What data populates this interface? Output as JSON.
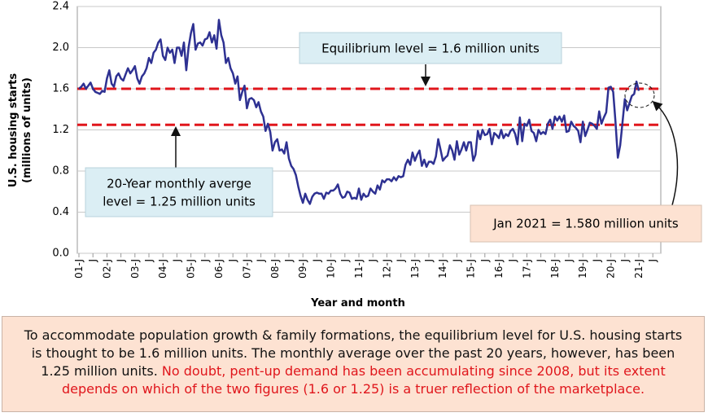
{
  "chart_data": {
    "type": "line",
    "y_label": [
      "U.S. housing starts",
      "(millions of units)"
    ],
    "x_label": "Year and month",
    "ylim": [
      0,
      2.4
    ],
    "yticks": [
      {
        "value": 0,
        "label": "0.0"
      },
      0.4,
      0.8,
      1.2,
      1.6,
      {
        "value": 2,
        "label": "2.0"
      },
      2.4
    ],
    "grid": true,
    "categories": [
      "01-J",
      null,
      null,
      null,
      null,
      null,
      "J",
      null,
      null,
      null,
      null,
      null,
      "02-J",
      null,
      null,
      null,
      null,
      null,
      "J",
      null,
      null,
      null,
      null,
      null,
      "03-J",
      null,
      null,
      null,
      null,
      null,
      "J",
      null,
      null,
      null,
      null,
      null,
      "04-J",
      null,
      null,
      null,
      null,
      null,
      "J",
      null,
      null,
      null,
      null,
      null,
      "05-J",
      null,
      null,
      null,
      null,
      null,
      "J",
      null,
      null,
      null,
      null,
      null,
      "06-J",
      null,
      null,
      null,
      null,
      null,
      "J",
      null,
      null,
      null,
      null,
      null,
      "07-J",
      null,
      null,
      null,
      null,
      null,
      "J",
      null,
      null,
      null,
      null,
      null,
      "08-J",
      null,
      null,
      null,
      null,
      null,
      "J",
      null,
      null,
      null,
      null,
      null,
      "09-J",
      null,
      null,
      null,
      null,
      null,
      "J",
      null,
      null,
      null,
      null,
      null,
      "10-J",
      null,
      null,
      null,
      null,
      null,
      "J",
      null,
      null,
      null,
      null,
      null,
      "11-J",
      null,
      null,
      null,
      null,
      null,
      "J",
      null,
      null,
      null,
      null,
      null,
      "12-J",
      null,
      null,
      null,
      null,
      null,
      "J",
      null,
      null,
      null,
      null,
      null,
      "13-J",
      null,
      null,
      null,
      null,
      null,
      "J",
      null,
      null,
      null,
      null,
      null,
      "14-J",
      null,
      null,
      null,
      null,
      null,
      "J",
      null,
      null,
      null,
      null,
      null,
      "15-J",
      null,
      null,
      null,
      null,
      null,
      "J",
      null,
      null,
      null,
      null,
      null,
      "16-J",
      null,
      null,
      null,
      null,
      null,
      "J",
      null,
      null,
      null,
      null,
      null,
      "17-J",
      null,
      null,
      null,
      null,
      null,
      "J",
      null,
      null,
      null,
      null,
      null,
      "18-J",
      null,
      null,
      null,
      null,
      null,
      "J",
      null,
      null,
      null,
      null,
      null,
      "19-J",
      null,
      null,
      null,
      null,
      null,
      "J",
      null,
      null,
      null,
      null,
      null,
      "20-J",
      null,
      null,
      null,
      null,
      null,
      "J",
      null,
      null,
      null,
      null,
      null,
      "21-J",
      null,
      null,
      null,
      null,
      null,
      "J"
    ],
    "series": [
      {
        "color": "#2e3192",
        "values": [
          1.6,
          1.62,
          1.65,
          1.6,
          1.63,
          1.66,
          1.6,
          1.57,
          1.56,
          1.55,
          1.58,
          1.57,
          1.7,
          1.78,
          1.65,
          1.62,
          1.72,
          1.75,
          1.7,
          1.68,
          1.74,
          1.8,
          1.75,
          1.78,
          1.82,
          1.7,
          1.65,
          1.72,
          1.75,
          1.8,
          1.9,
          1.85,
          1.95,
          1.98,
          2.05,
          2.08,
          1.92,
          1.88,
          2.0,
          1.95,
          1.98,
          1.85,
          2.0,
          2.0,
          1.92,
          2.05,
          1.78,
          2.0,
          2.14,
          2.23,
          1.98,
          2.04,
          2.05,
          2.02,
          2.08,
          2.09,
          2.15,
          2.05,
          2.12,
          1.99,
          2.27,
          2.12,
          2.05,
          1.85,
          1.9,
          1.8,
          1.75,
          1.65,
          1.72,
          1.49,
          1.57,
          1.63,
          1.41,
          1.5,
          1.51,
          1.49,
          1.42,
          1.47,
          1.38,
          1.33,
          1.19,
          1.26,
          1.18,
          1.0,
          1.08,
          1.11,
          1.0,
          1.01,
          0.97,
          1.08,
          0.92,
          0.85,
          0.82,
          0.76,
          0.65,
          0.56,
          0.49,
          0.58,
          0.52,
          0.48,
          0.55,
          0.58,
          0.59,
          0.58,
          0.58,
          0.53,
          0.59,
          0.58,
          0.61,
          0.61,
          0.63,
          0.67,
          0.58,
          0.54,
          0.55,
          0.6,
          0.59,
          0.53,
          0.54,
          0.53,
          0.63,
          0.52,
          0.58,
          0.55,
          0.56,
          0.63,
          0.6,
          0.58,
          0.66,
          0.62,
          0.71,
          0.69,
          0.72,
          0.72,
          0.7,
          0.74,
          0.71,
          0.75,
          0.74,
          0.75,
          0.86,
          0.91,
          0.86,
          0.98,
          0.9,
          0.96,
          1.0,
          0.85,
          0.91,
          0.84,
          0.89,
          0.89,
          0.87,
          0.94,
          1.11,
          1.01,
          0.9,
          0.93,
          0.95,
          1.05,
          1.0,
          0.91,
          1.09,
          0.96,
          1.01,
          1.08,
          1.0,
          1.08,
          1.08,
          0.9,
          0.96,
          1.19,
          1.11,
          1.2,
          1.15,
          1.16,
          1.21,
          1.06,
          1.17,
          1.15,
          1.12,
          1.2,
          1.12,
          1.16,
          1.14,
          1.19,
          1.21,
          1.16,
          1.06,
          1.32,
          1.09,
          1.26,
          1.24,
          1.3,
          1.19,
          1.17,
          1.09,
          1.2,
          1.16,
          1.18,
          1.16,
          1.26,
          1.3,
          1.21,
          1.33,
          1.29,
          1.33,
          1.28,
          1.34,
          1.18,
          1.19,
          1.28,
          1.24,
          1.22,
          1.19,
          1.08,
          1.28,
          1.14,
          1.2,
          1.27,
          1.26,
          1.24,
          1.21,
          1.38,
          1.26,
          1.32,
          1.37,
          1.61,
          1.62,
          1.57,
          1.28,
          0.93,
          1.05,
          1.27,
          1.5,
          1.39,
          1.46,
          1.53,
          1.55,
          1.67,
          1.58,
          null,
          null,
          null,
          null,
          null,
          null
        ]
      }
    ],
    "reference_lines": [
      {
        "value": 1.6,
        "color": "#e0161c"
      },
      {
        "value": 1.25,
        "color": "#e0161c"
      }
    ],
    "annotations": {
      "equilibrium": "Equilibrium level  = 1.6 million units",
      "average": [
        "20-Year monthly averge",
        "level = 1.25 million units"
      ],
      "latest": "Jan 2021 = 1.580 million units"
    }
  },
  "footer": {
    "text": "To accommodate population growth & family formations, the equilibrium level for U.S. housing starts is thought to be 1.6 million units. The monthly average over the past 20 years, however, has been 1.25 million units.",
    "highlight": "No doubt, pent-up demand has been accumulating since 2008, but its  extent depends on which of the two figures (1.6 or 1.25) is a truer reflection of the marketplace."
  }
}
